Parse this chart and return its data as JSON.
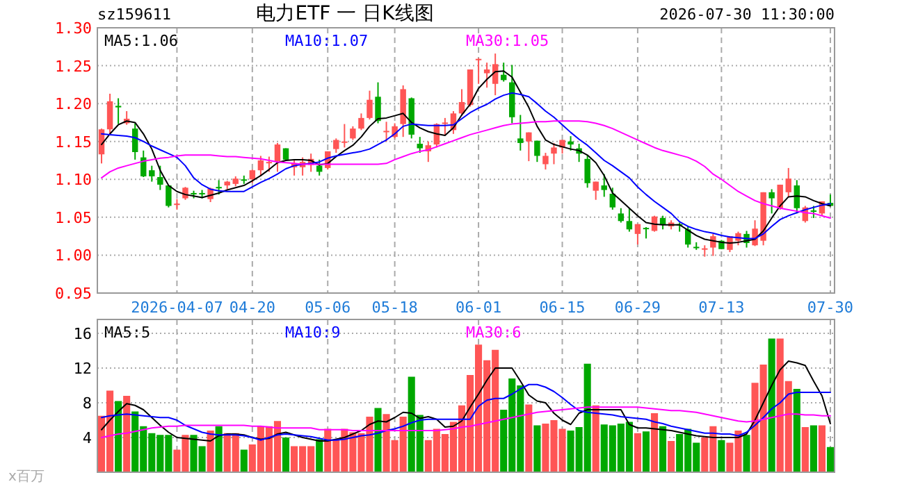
{
  "chart_data": [
    {
      "type": "candlestick",
      "title": "电力ETF 一 日K线图",
      "subtitle": "sz159611",
      "annotations": [
        "2026-07-30 11:30:00"
      ],
      "categories": [
        null,
        null,
        null,
        null,
        null,
        null,
        null,
        null,
        null,
        "2026-04-07",
        null,
        null,
        null,
        null,
        null,
        null,
        null,
        null,
        "04-20",
        null,
        null,
        null,
        null,
        null,
        null,
        null,
        null,
        "05-06",
        null,
        null,
        null,
        null,
        null,
        null,
        null,
        "05-18",
        null,
        null,
        null,
        null,
        null,
        null,
        null,
        null,
        null,
        "06-01",
        null,
        null,
        null,
        null,
        null,
        null,
        null,
        null,
        null,
        "06-15",
        null,
        null,
        null,
        null,
        null,
        null,
        null,
        null,
        "06-29",
        null,
        null,
        null,
        null,
        null,
        null,
        null,
        null,
        null,
        "07-13",
        null,
        null,
        null,
        null,
        null,
        null,
        null,
        null,
        null,
        null,
        null,
        null,
        "07-30"
      ],
      "ohlc": [
        [
          1.133,
          1.167,
          1.121,
          1.166
        ],
        [
          1.166,
          1.213,
          1.159,
          1.203
        ],
        [
          1.197,
          1.207,
          1.173,
          1.195
        ],
        [
          1.174,
          1.19,
          1.172,
          1.18
        ],
        [
          1.167,
          1.174,
          1.126,
          1.136
        ],
        [
          1.129,
          1.138,
          1.103,
          1.104
        ],
        [
          1.112,
          1.118,
          1.097,
          1.104
        ],
        [
          1.103,
          1.118,
          1.086,
          1.093
        ],
        [
          1.092,
          1.092,
          1.063,
          1.065
        ],
        [
          1.067,
          1.074,
          1.06,
          1.068
        ],
        [
          1.075,
          1.09,
          1.073,
          1.089
        ],
        [
          1.082,
          1.085,
          1.075,
          1.081
        ],
        [
          1.082,
          1.086,
          1.075,
          1.081
        ],
        [
          1.074,
          1.089,
          1.07,
          1.088
        ],
        [
          1.09,
          1.099,
          1.08,
          1.089
        ],
        [
          1.092,
          1.098,
          1.087,
          1.097
        ],
        [
          1.094,
          1.104,
          1.091,
          1.101
        ],
        [
          1.1,
          1.105,
          1.094,
          1.099
        ],
        [
          1.1,
          1.113,
          1.095,
          1.112
        ],
        [
          1.112,
          1.131,
          1.104,
          1.125
        ],
        [
          1.122,
          1.13,
          1.11,
          1.123
        ],
        [
          1.124,
          1.148,
          1.11,
          1.146
        ],
        [
          1.141,
          1.141,
          1.126,
          1.126
        ],
        [
          1.116,
          1.126,
          1.105,
          1.121
        ],
        [
          1.116,
          1.129,
          1.105,
          1.123
        ],
        [
          1.119,
          1.134,
          1.11,
          1.127
        ],
        [
          1.118,
          1.126,
          1.105,
          1.11
        ],
        [
          1.115,
          1.137,
          1.113,
          1.137
        ],
        [
          1.14,
          1.154,
          1.135,
          1.152
        ],
        [
          1.149,
          1.173,
          1.142,
          1.15
        ],
        [
          1.154,
          1.17,
          1.152,
          1.167
        ],
        [
          1.167,
          1.187,
          1.165,
          1.181
        ],
        [
          1.181,
          1.217,
          1.179,
          1.205
        ],
        [
          1.209,
          1.228,
          1.174,
          1.177
        ],
        [
          1.163,
          1.176,
          1.15,
          1.164
        ],
        [
          1.156,
          1.174,
          1.154,
          1.17
        ],
        [
          1.173,
          1.224,
          1.156,
          1.219
        ],
        [
          1.207,
          1.208,
          1.154,
          1.159
        ],
        [
          1.147,
          1.156,
          1.135,
          1.141
        ],
        [
          1.137,
          1.15,
          1.123,
          1.145
        ],
        [
          1.146,
          1.174,
          1.142,
          1.173
        ],
        [
          1.174,
          1.181,
          1.159,
          1.175
        ],
        [
          1.165,
          1.19,
          1.16,
          1.187
        ],
        [
          1.187,
          1.219,
          1.184,
          1.202
        ],
        [
          1.198,
          1.245,
          1.196,
          1.245
        ],
        [
          1.258,
          1.26,
          1.226,
          1.259
        ],
        [
          1.24,
          1.254,
          1.221,
          1.245
        ],
        [
          1.226,
          1.266,
          1.211,
          1.252
        ],
        [
          1.238,
          1.254,
          1.229,
          1.231
        ],
        [
          1.228,
          1.251,
          1.174,
          1.182
        ],
        [
          1.154,
          1.185,
          1.138,
          1.148
        ],
        [
          1.15,
          1.162,
          1.124,
          1.162
        ],
        [
          1.151,
          1.151,
          1.123,
          1.131
        ],
        [
          1.12,
          1.135,
          1.113,
          1.131
        ],
        [
          1.134,
          1.148,
          1.12,
          1.142
        ],
        [
          1.142,
          1.152,
          1.134,
          1.152
        ],
        [
          1.15,
          1.157,
          1.138,
          1.146
        ],
        [
          1.141,
          1.147,
          1.123,
          1.134
        ],
        [
          1.127,
          1.132,
          1.089,
          1.095
        ],
        [
          1.085,
          1.097,
          1.073,
          1.097
        ],
        [
          1.092,
          1.107,
          1.077,
          1.086
        ],
        [
          1.081,
          1.089,
          1.06,
          1.063
        ],
        [
          1.055,
          1.062,
          1.043,
          1.045
        ],
        [
          1.045,
          1.062,
          1.031,
          1.034
        ],
        [
          1.028,
          1.041,
          1.014,
          1.041
        ],
        [
          1.036,
          1.037,
          1.022,
          1.035
        ],
        [
          1.032,
          1.052,
          1.031,
          1.051
        ],
        [
          1.049,
          1.052,
          1.034,
          1.04
        ],
        [
          1.038,
          1.046,
          1.034,
          1.043
        ],
        [
          1.041,
          1.043,
          1.031,
          1.04
        ],
        [
          1.034,
          1.038,
          1.01,
          1.014
        ],
        [
          1.011,
          1.017,
          1.007,
          1.01
        ],
        [
          1.008,
          1.013,
          0.998,
          1.009
        ],
        [
          1.01,
          1.028,
          0.999,
          1.025
        ],
        [
          1.019,
          1.02,
          1.008,
          1.008
        ],
        [
          1.007,
          1.025,
          1.004,
          1.025
        ],
        [
          1.019,
          1.031,
          1.013,
          1.029
        ],
        [
          1.028,
          1.032,
          1.01,
          1.016
        ],
        [
          1.013,
          1.046,
          1.012,
          1.035
        ],
        [
          1.019,
          1.083,
          1.013,
          1.083
        ],
        [
          1.083,
          1.087,
          1.055,
          1.075
        ],
        [
          1.062,
          1.093,
          1.06,
          1.093
        ],
        [
          1.083,
          1.115,
          1.077,
          1.101
        ],
        [
          1.092,
          1.099,
          1.055,
          1.062
        ],
        [
          1.045,
          1.065,
          1.043,
          1.063
        ],
        [
          1.059,
          1.065,
          1.049,
          1.058
        ],
        [
          1.055,
          1.071,
          1.052,
          1.071
        ],
        [
          1.069,
          1.08,
          1.065,
          1.065
        ]
      ],
      "series": [
        {
          "name": "MA5:1.06",
          "color": "#000000",
          "type": "line",
          "values": [
            1.146,
            1.16,
            1.172,
            1.177,
            1.175,
            1.16,
            1.14,
            1.112,
            1.092,
            1.084,
            1.08,
            1.078,
            1.076,
            1.079,
            1.082,
            1.086,
            1.089,
            1.092,
            1.098,
            1.105,
            1.113,
            1.122,
            1.125,
            1.126,
            1.126,
            1.125,
            1.119,
            1.121,
            1.13,
            1.138,
            1.145,
            1.156,
            1.17,
            1.18,
            1.181,
            1.184,
            1.187,
            1.175,
            1.168,
            1.163,
            1.16,
            1.158,
            1.168,
            1.185,
            1.199,
            1.22,
            1.232,
            1.242,
            1.243,
            1.235,
            1.215,
            1.195,
            1.17,
            1.152,
            1.146,
            1.143,
            1.14,
            1.138,
            1.132,
            1.122,
            1.105,
            1.082,
            1.072,
            1.062,
            1.052,
            1.043,
            1.041,
            1.04,
            1.04,
            1.04,
            1.033,
            1.026,
            1.021,
            1.019,
            1.017,
            1.016,
            1.017,
            1.019,
            1.021,
            1.032,
            1.049,
            1.065,
            1.077,
            1.078,
            1.077,
            1.072,
            1.068,
            1.065
          ]
        },
        {
          "name": "MA10:1.07",
          "color": "#0000ff",
          "type": "line",
          "values": [
            1.16,
            1.159,
            1.158,
            1.157,
            1.155,
            1.15,
            1.144,
            1.139,
            1.134,
            1.129,
            1.118,
            1.102,
            1.093,
            1.087,
            1.085,
            1.084,
            1.084,
            1.084,
            1.09,
            1.096,
            1.101,
            1.107,
            1.114,
            1.118,
            1.12,
            1.121,
            1.123,
            1.128,
            1.131,
            1.133,
            1.135,
            1.137,
            1.14,
            1.146,
            1.152,
            1.16,
            1.17,
            1.173,
            1.172,
            1.171,
            1.171,
            1.171,
            1.172,
            1.18,
            1.188,
            1.194,
            1.199,
            1.206,
            1.211,
            1.214,
            1.212,
            1.209,
            1.2,
            1.19,
            1.182,
            1.172,
            1.162,
            1.153,
            1.145,
            1.135,
            1.125,
            1.118,
            1.11,
            1.102,
            1.09,
            1.08,
            1.071,
            1.063,
            1.055,
            1.044,
            1.038,
            1.034,
            1.031,
            1.029,
            1.026,
            1.024,
            1.023,
            1.022,
            1.022,
            1.028,
            1.038,
            1.047,
            1.052,
            1.056,
            1.06,
            1.063,
            1.066,
            1.068
          ]
        },
        {
          "name": "MA30:1.05",
          "color": "#ff00ff",
          "type": "line",
          "values": [
            1.102,
            1.11,
            1.115,
            1.118,
            1.121,
            1.124,
            1.126,
            1.128,
            1.129,
            1.131,
            1.132,
            1.132,
            1.132,
            1.132,
            1.131,
            1.13,
            1.13,
            1.129,
            1.128,
            1.127,
            1.125,
            1.123,
            1.122,
            1.121,
            1.12,
            1.12,
            1.12,
            1.12,
            1.12,
            1.12,
            1.12,
            1.12,
            1.12,
            1.12,
            1.121,
            1.126,
            1.13,
            1.134,
            1.137,
            1.139,
            1.143,
            1.147,
            1.151,
            1.155,
            1.159,
            1.162,
            1.165,
            1.168,
            1.171,
            1.173,
            1.174,
            1.175,
            1.176,
            1.176,
            1.177,
            1.177,
            1.177,
            1.177,
            1.176,
            1.174,
            1.171,
            1.167,
            1.162,
            1.157,
            1.152,
            1.147,
            1.142,
            1.138,
            1.135,
            1.132,
            1.129,
            1.124,
            1.117,
            1.107,
            1.1,
            1.092,
            1.084,
            1.078,
            1.072,
            1.068,
            1.065,
            1.062,
            1.06,
            1.058,
            1.056,
            1.055,
            1.052,
            1.049
          ]
        }
      ],
      "ylim": [
        0.95,
        1.3
      ],
      "yticks": [
        {
          "value": 0.95,
          "label": "0.95"
        },
        {
          "value": 1.0,
          "label": "1.00"
        },
        {
          "value": 1.05,
          "label": "1.05"
        },
        {
          "value": 1.1,
          "label": "1.10"
        },
        {
          "value": 1.15,
          "label": "1.15"
        },
        {
          "value": 1.2,
          "label": "1.20"
        },
        {
          "value": 1.25,
          "label": "1.25"
        },
        {
          "value": 1.3,
          "label": "1.30"
        }
      ],
      "grid": true,
      "legend": "top"
    },
    {
      "type": "bar",
      "ylabel": "x百万",
      "tick_labels": "y",
      "categories": [
        null,
        null,
        null,
        null,
        null,
        null,
        null,
        null,
        null,
        null,
        null,
        null,
        null,
        null,
        null,
        null,
        null,
        null,
        null,
        null,
        null,
        null,
        null,
        null,
        null,
        null,
        null,
        null,
        null,
        null,
        null,
        null,
        null,
        null,
        null,
        null,
        null,
        null,
        null,
        null,
        null,
        null,
        null,
        null,
        null,
        null,
        null,
        null,
        null,
        null,
        null,
        null,
        null,
        null,
        null,
        null,
        null,
        null,
        null,
        null,
        null,
        null,
        null,
        null,
        null,
        null,
        null,
        null,
        null,
        null,
        null,
        null,
        null,
        null,
        null,
        null,
        null,
        null,
        null,
        null,
        null,
        null,
        null,
        null,
        null,
        null,
        null,
        null
      ],
      "series": [
        {
          "type": "bar",
          "values": [
            6.5,
            9.4,
            8.2,
            8.8,
            7.0,
            5.3,
            4.5,
            4.3,
            4.3,
            2.6,
            4.3,
            4.3,
            3.0,
            4.8,
            5.3,
            4.5,
            4.5,
            2.6,
            3.2,
            5.3,
            5.3,
            5.9,
            4.0,
            3.0,
            3.0,
            3.0,
            3.8,
            5.0,
            3.7,
            5.0,
            4.6,
            4.5,
            6.4,
            7.4,
            6.7,
            3.7,
            6.4,
            11.0,
            6.6,
            3.7,
            5.0,
            4.4,
            5.8,
            7.7,
            11.2,
            14.7,
            12.9,
            14.1,
            7.2,
            10.8,
            10.0,
            7.8,
            5.4,
            5.6,
            6.0,
            5.0,
            4.8,
            5.2,
            12.5,
            7.7,
            5.5,
            5.4,
            5.6,
            5.8,
            4.5,
            4.7,
            6.8,
            5.3,
            3.6,
            4.4,
            5.0,
            3.4,
            4.0,
            5.3,
            3.7,
            3.4,
            4.8,
            4.3,
            10.3,
            12.4,
            15.4,
            15.4,
            10.5,
            9.6,
            5.2,
            5.4,
            5.4,
            2.9
          ],
          "colors": [
            "#ff5555",
            "#ff5555",
            "#00a800",
            "#ff5555",
            "#00a800",
            "#00a800",
            "#00a800",
            "#00a800",
            "#00a800",
            "#ff5555",
            "#ff5555",
            "#00a800",
            "#00a800",
            "#ff5555",
            "#00a800",
            "#ff5555",
            "#ff5555",
            "#00a800",
            "#ff5555",
            "#ff5555",
            "#ff5555",
            "#ff5555",
            "#00a800",
            "#ff5555",
            "#ff5555",
            "#ff5555",
            "#00a800",
            "#ff5555",
            "#ff5555",
            "#ff5555",
            "#ff5555",
            "#ff5555",
            "#ff5555",
            "#00a800",
            "#ff5555",
            "#ff5555",
            "#ff5555",
            "#00a800",
            "#00a800",
            "#ff5555",
            "#ff5555",
            "#ff5555",
            "#ff5555",
            "#ff5555",
            "#ff5555",
            "#ff5555",
            "#ff5555",
            "#ff5555",
            "#00a800",
            "#00a800",
            "#00a800",
            "#ff5555",
            "#00a800",
            "#ff5555",
            "#ff5555",
            "#ff5555",
            "#00a800",
            "#00a800",
            "#00a800",
            "#ff5555",
            "#00a800",
            "#00a800",
            "#00a800",
            "#00a800",
            "#ff5555",
            "#00a800",
            "#ff5555",
            "#00a800",
            "#ff5555",
            "#00a800",
            "#00a800",
            "#00a800",
            "#ff5555",
            "#ff5555",
            "#00a800",
            "#ff5555",
            "#ff5555",
            "#00a800",
            "#ff5555",
            "#ff5555",
            "#00a800",
            "#ff5555",
            "#ff5555",
            "#00a800",
            "#ff5555",
            "#00a800",
            "#ff5555",
            "#00a800"
          ]
        },
        {
          "name": "MA5:5",
          "color": "#000000",
          "type": "line",
          "values": [
            4.9,
            6.0,
            7.0,
            7.9,
            7.7,
            7.2,
            6.3,
            5.4,
            4.6,
            4.0,
            3.9,
            3.8,
            3.7,
            3.6,
            4.2,
            4.4,
            4.4,
            4.3,
            4.0,
            3.8,
            3.9,
            4.4,
            4.6,
            4.3,
            4.0,
            3.8,
            3.6,
            3.6,
            3.8,
            4.0,
            4.4,
            4.8,
            5.5,
            5.9,
            5.8,
            6.3,
            6.9,
            6.8,
            6.2,
            6.4,
            6.1,
            5.2,
            5.3,
            5.9,
            7.5,
            9.0,
            10.6,
            12.0,
            12.0,
            12.0,
            10.5,
            8.9,
            8.2,
            8.0,
            6.8,
            6.0,
            5.5,
            6.8,
            7.2,
            7.2,
            7.2,
            7.2,
            7.2,
            5.5,
            5.1,
            5.1,
            5.0,
            4.9,
            4.8,
            4.6,
            4.4,
            4.2,
            4.1,
            4.0,
            4.0,
            4.0,
            4.0,
            4.4,
            6.0,
            8.0,
            10.0,
            11.8,
            12.8,
            12.6,
            12.3,
            10.5,
            8.8,
            5.6
          ]
        },
        {
          "name": "MA10:9",
          "color": "#0000ff",
          "type": "line",
          "values": [
            6.3,
            6.5,
            6.6,
            6.7,
            6.6,
            6.5,
            6.4,
            6.3,
            6.3,
            6.0,
            5.4,
            5.0,
            4.6,
            4.4,
            4.3,
            4.3,
            4.3,
            4.2,
            4.0,
            3.7,
            4.0,
            4.3,
            4.4,
            4.3,
            4.2,
            4.1,
            3.9,
            3.7,
            3.7,
            3.8,
            4.0,
            4.2,
            4.3,
            4.5,
            4.8,
            5.0,
            5.3,
            5.7,
            6.0,
            6.1,
            6.1,
            6.1,
            6.1,
            6.1,
            6.1,
            7.6,
            8.3,
            8.5,
            8.5,
            9.0,
            9.6,
            10.1,
            10.1,
            9.8,
            9.3,
            8.6,
            7.8,
            7.1,
            6.9,
            6.8,
            6.7,
            6.6,
            6.4,
            6.3,
            6.2,
            6.1,
            5.8,
            5.6,
            5.3,
            5.1,
            4.9,
            4.7,
            4.5,
            4.5,
            4.4,
            4.4,
            4.2,
            4.6,
            5.4,
            6.3,
            7.3,
            8.0,
            9.0,
            9.2,
            9.2,
            9.2,
            9.2,
            9.2
          ]
        },
        {
          "name": "MA30:6",
          "color": "#ff00ff",
          "type": "line",
          "values": [
            4.0,
            4.2,
            4.4,
            4.5,
            4.7,
            4.9,
            5.1,
            5.2,
            5.3,
            5.3,
            5.4,
            5.4,
            5.4,
            5.4,
            5.4,
            5.4,
            5.4,
            5.4,
            5.3,
            5.3,
            5.2,
            5.1,
            5.1,
            5.1,
            5.1,
            5.1,
            4.9,
            4.9,
            4.9,
            4.9,
            4.8,
            4.8,
            4.8,
            4.8,
            4.8,
            4.8,
            4.8,
            4.8,
            4.8,
            4.8,
            4.8,
            4.9,
            5.0,
            5.2,
            5.3,
            5.5,
            5.7,
            5.9,
            6.1,
            6.3,
            6.5,
            6.7,
            6.9,
            7.0,
            7.1,
            7.2,
            7.3,
            7.4,
            7.5,
            7.5,
            7.5,
            7.5,
            7.5,
            7.5,
            7.5,
            7.4,
            7.3,
            7.2,
            7.1,
            7.1,
            7.0,
            6.9,
            6.7,
            6.5,
            6.3,
            6.1,
            5.9,
            5.8,
            5.9,
            6.1,
            6.3,
            6.5,
            6.7,
            6.7,
            6.6,
            6.6,
            6.5,
            6.5
          ]
        }
      ],
      "ylim": [
        0,
        17.6
      ],
      "yticks": [
        4,
        8,
        12,
        16
      ],
      "grid": true,
      "legend": "top"
    }
  ]
}
